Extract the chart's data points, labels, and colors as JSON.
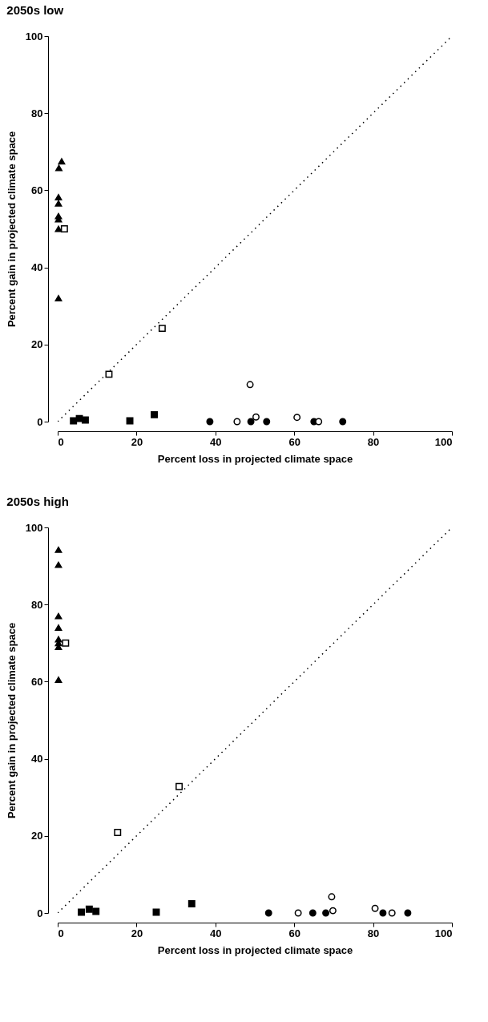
{
  "chart_data": [
    {
      "type": "scatter",
      "title": "2050s low",
      "xlabel": "Percent loss in projected climate space",
      "ylabel": "Percent gain in projected climate space",
      "xlim": [
        0,
        100
      ],
      "ylim": [
        0,
        100
      ],
      "xticks": [
        0,
        20,
        40,
        60,
        80,
        100
      ],
      "yticks": [
        0,
        20,
        40,
        60,
        80,
        100
      ],
      "series": [
        {
          "type": "line",
          "color": "#000000",
          "line_style": "dotted",
          "x": [
            0,
            100
          ],
          "values": [
            0,
            100
          ]
        },
        {
          "color": "#000000",
          "marker": "triangle",
          "x": [
            1,
            0.3,
            0.2,
            0.2,
            0.2,
            0.2,
            0.2,
            0.2
          ],
          "values": [
            67.5,
            65.8,
            58.2,
            56.6,
            53.3,
            52.5,
            50,
            32
          ]
        },
        {
          "color": "#ffffff",
          "marker": "square",
          "x": [
            1.7,
            13,
            26.5
          ],
          "values": [
            50,
            12.3,
            24.2
          ]
        },
        {
          "color": "#000000",
          "marker": "square",
          "x": [
            4,
            5.5,
            7,
            18.3,
            24.5
          ],
          "values": [
            0.2,
            0.8,
            0.4,
            0.2,
            1.8
          ]
        },
        {
          "color": "#000000",
          "marker": "circle",
          "x": [
            38.6,
            49,
            53,
            65,
            72.3
          ],
          "values": [
            0,
            0,
            0,
            0,
            0
          ]
        },
        {
          "color": "#ffffff",
          "marker": "circle",
          "x": [
            45.5,
            48.8,
            50.3,
            60.7,
            66.2
          ],
          "values": [
            0,
            9.6,
            1.2,
            1.1,
            0
          ]
        }
      ]
    },
    {
      "type": "scatter",
      "title": "2050s high",
      "xlabel": "Percent loss in projected climate space",
      "ylabel": "Percent gain in projected climate space",
      "xlim": [
        0,
        100
      ],
      "ylim": [
        0,
        100
      ],
      "xticks": [
        0,
        20,
        40,
        60,
        80,
        100
      ],
      "yticks": [
        0,
        20,
        40,
        60,
        80,
        100
      ],
      "series": [
        {
          "type": "line",
          "color": "#000000",
          "line_style": "dotted",
          "x": [
            0,
            100
          ],
          "values": [
            0,
            100
          ]
        },
        {
          "color": "#000000",
          "marker": "triangle",
          "x": [
            0.2,
            0.2,
            0.2,
            0.2,
            0.2,
            0.2,
            0.2,
            0.2
          ],
          "values": [
            94.2,
            90.3,
            77,
            74,
            71,
            70,
            69,
            60.5
          ]
        },
        {
          "color": "#ffffff",
          "marker": "square",
          "x": [
            2,
            15.2,
            30.8
          ],
          "values": [
            70,
            20.9,
            32.8
          ]
        },
        {
          "color": "#000000",
          "marker": "square",
          "x": [
            6,
            8,
            9.7,
            25,
            34
          ],
          "values": [
            0.2,
            1,
            0.4,
            0.2,
            2.4
          ]
        },
        {
          "color": "#000000",
          "marker": "circle",
          "x": [
            53.5,
            64.7,
            68,
            82.5,
            88.8
          ],
          "values": [
            0,
            0,
            0,
            0,
            0
          ]
        },
        {
          "color": "#ffffff",
          "marker": "circle",
          "x": [
            61,
            69.5,
            69.8,
            80.5,
            84.8
          ],
          "values": [
            0,
            4.2,
            0.6,
            1.2,
            0
          ]
        }
      ]
    }
  ]
}
